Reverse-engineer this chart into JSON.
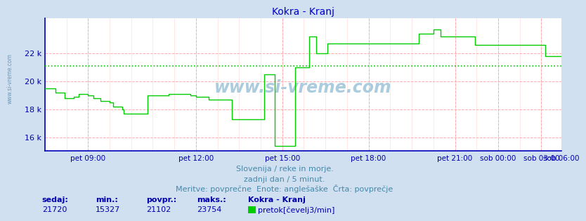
{
  "title": "Kokra - Kranj",
  "title_color": "#0000cc",
  "bg_color": "#d0e0f0",
  "plot_bg_color": "#ffffff",
  "grid_color_major": "#ffaaaa",
  "grid_color_minor": "#ffdddd",
  "line_color": "#00cc00",
  "axis_color": "#0000bb",
  "tick_label_color": "#0000aa",
  "avg_line_color": "#00cc00",
  "avg_value": 21102,
  "ylim": [
    15000,
    24500
  ],
  "yticks": [
    16000,
    18000,
    20000,
    22000
  ],
  "ytick_labels": [
    "16 k",
    "18 k",
    "20 k",
    "22 k"
  ],
  "watermark": "www.si-vreme.com",
  "watermark_color": "#aaccdd",
  "subtitle1": "Slovenija / reke in morje.",
  "subtitle2": "zadnji dan / 5 minut.",
  "subtitle3": "Meritve: povprečne  Enote: anglešaške  Črta: povprečje",
  "subtitle_color": "#4488aa",
  "footer_labels": [
    "sedaj:",
    "min.:",
    "povpr.:",
    "maks.:"
  ],
  "footer_values": [
    "21720",
    "15327",
    "21102",
    "23754"
  ],
  "footer_station": "Kokra - Kranj",
  "footer_legend": "pretok[čevelj3/min]",
  "footer_color": "#0000aa",
  "xtick_positions": [
    24,
    84,
    132,
    180,
    228,
    252,
    276,
    287
  ],
  "xtick_labels": [
    "pet 09:00",
    "pet 12:00",
    "pet 15:00",
    "pet 18:00",
    "pet 21:00",
    "sob 00:00",
    "sob 03:00",
    "sob 06:00"
  ],
  "flow_data": [
    19500,
    19500,
    19500,
    19500,
    19500,
    19500,
    19200,
    19200,
    19200,
    19200,
    19200,
    18800,
    18800,
    18800,
    18800,
    18800,
    18900,
    18900,
    18900,
    19100,
    19100,
    19100,
    19100,
    19100,
    19000,
    19000,
    19000,
    18800,
    18800,
    18800,
    18800,
    18600,
    18600,
    18600,
    18600,
    18600,
    18500,
    18500,
    18200,
    18200,
    18200,
    18200,
    18200,
    18000,
    17700,
    17700,
    17700,
    17700,
    17700,
    17700,
    17700,
    17700,
    17700,
    17700,
    17700,
    17700,
    17700,
    19000,
    19000,
    19000,
    19000,
    19000,
    19000,
    19000,
    19000,
    19000,
    19000,
    19000,
    19000,
    19100,
    19100,
    19100,
    19100,
    19100,
    19100,
    19100,
    19100,
    19100,
    19100,
    19100,
    19100,
    19000,
    19000,
    19000,
    18900,
    18900,
    18900,
    18900,
    18900,
    18900,
    18900,
    18700,
    18700,
    18700,
    18700,
    18700,
    18700,
    18700,
    18700,
    18700,
    18700,
    18700,
    18700,
    18700,
    17300,
    17300,
    17300,
    17300,
    17300,
    17300,
    17300,
    17300,
    17300,
    17300,
    17300,
    17300,
    17300,
    17300,
    17300,
    17300,
    17300,
    17300,
    20500,
    20500,
    20500,
    20500,
    20500,
    20500,
    15400,
    15400,
    15400,
    15400,
    15400,
    15400,
    15400,
    15400,
    15400,
    15400,
    15400,
    21000,
    21000,
    21000,
    21000,
    21000,
    21000,
    21000,
    21000,
    23200,
    23200,
    23200,
    23200,
    22000,
    22000,
    22000,
    22000,
    22000,
    22000,
    22700,
    22700,
    22700,
    22700,
    22700,
    22700,
    22700,
    22700,
    22700,
    22700,
    22700,
    22700,
    22700,
    22700,
    22700,
    22700,
    22700,
    22700,
    22700,
    22700,
    22700,
    22700,
    22700,
    22700,
    22700,
    22700,
    22700,
    22700,
    22700,
    22700,
    22700,
    22700,
    22700,
    22700,
    22700,
    22700,
    22700,
    22700,
    22700,
    22700,
    22700,
    22700,
    22700,
    22700,
    22700,
    22700,
    22700,
    22700,
    22700,
    22700,
    22700,
    23400,
    23400,
    23400,
    23400,
    23400,
    23400,
    23400,
    23400,
    23700,
    23700,
    23700,
    23700,
    23200,
    23200,
    23200,
    23200,
    23200,
    23200,
    23200,
    23200,
    23200,
    23200,
    23200,
    23200,
    23200,
    23200,
    23200,
    23200,
    23200,
    23200,
    23200,
    22600,
    22600,
    22600,
    22600,
    22600,
    22600,
    22600,
    22600,
    22600,
    22600,
    22600,
    22600,
    22600,
    22600,
    22600,
    22600,
    22600,
    22600,
    22600,
    22600,
    22600,
    22600,
    22600,
    22600,
    22600,
    22600,
    22600,
    22600,
    22600,
    22600,
    22600,
    22600,
    22600,
    22600,
    22600,
    22600,
    22600,
    22600,
    22600,
    21800,
    21800,
    21800,
    21800,
    21800,
    21800,
    21800,
    21800,
    21800,
    21800,
    21800,
    22000,
    22000,
    22000,
    21800,
    21800,
    21800
  ]
}
